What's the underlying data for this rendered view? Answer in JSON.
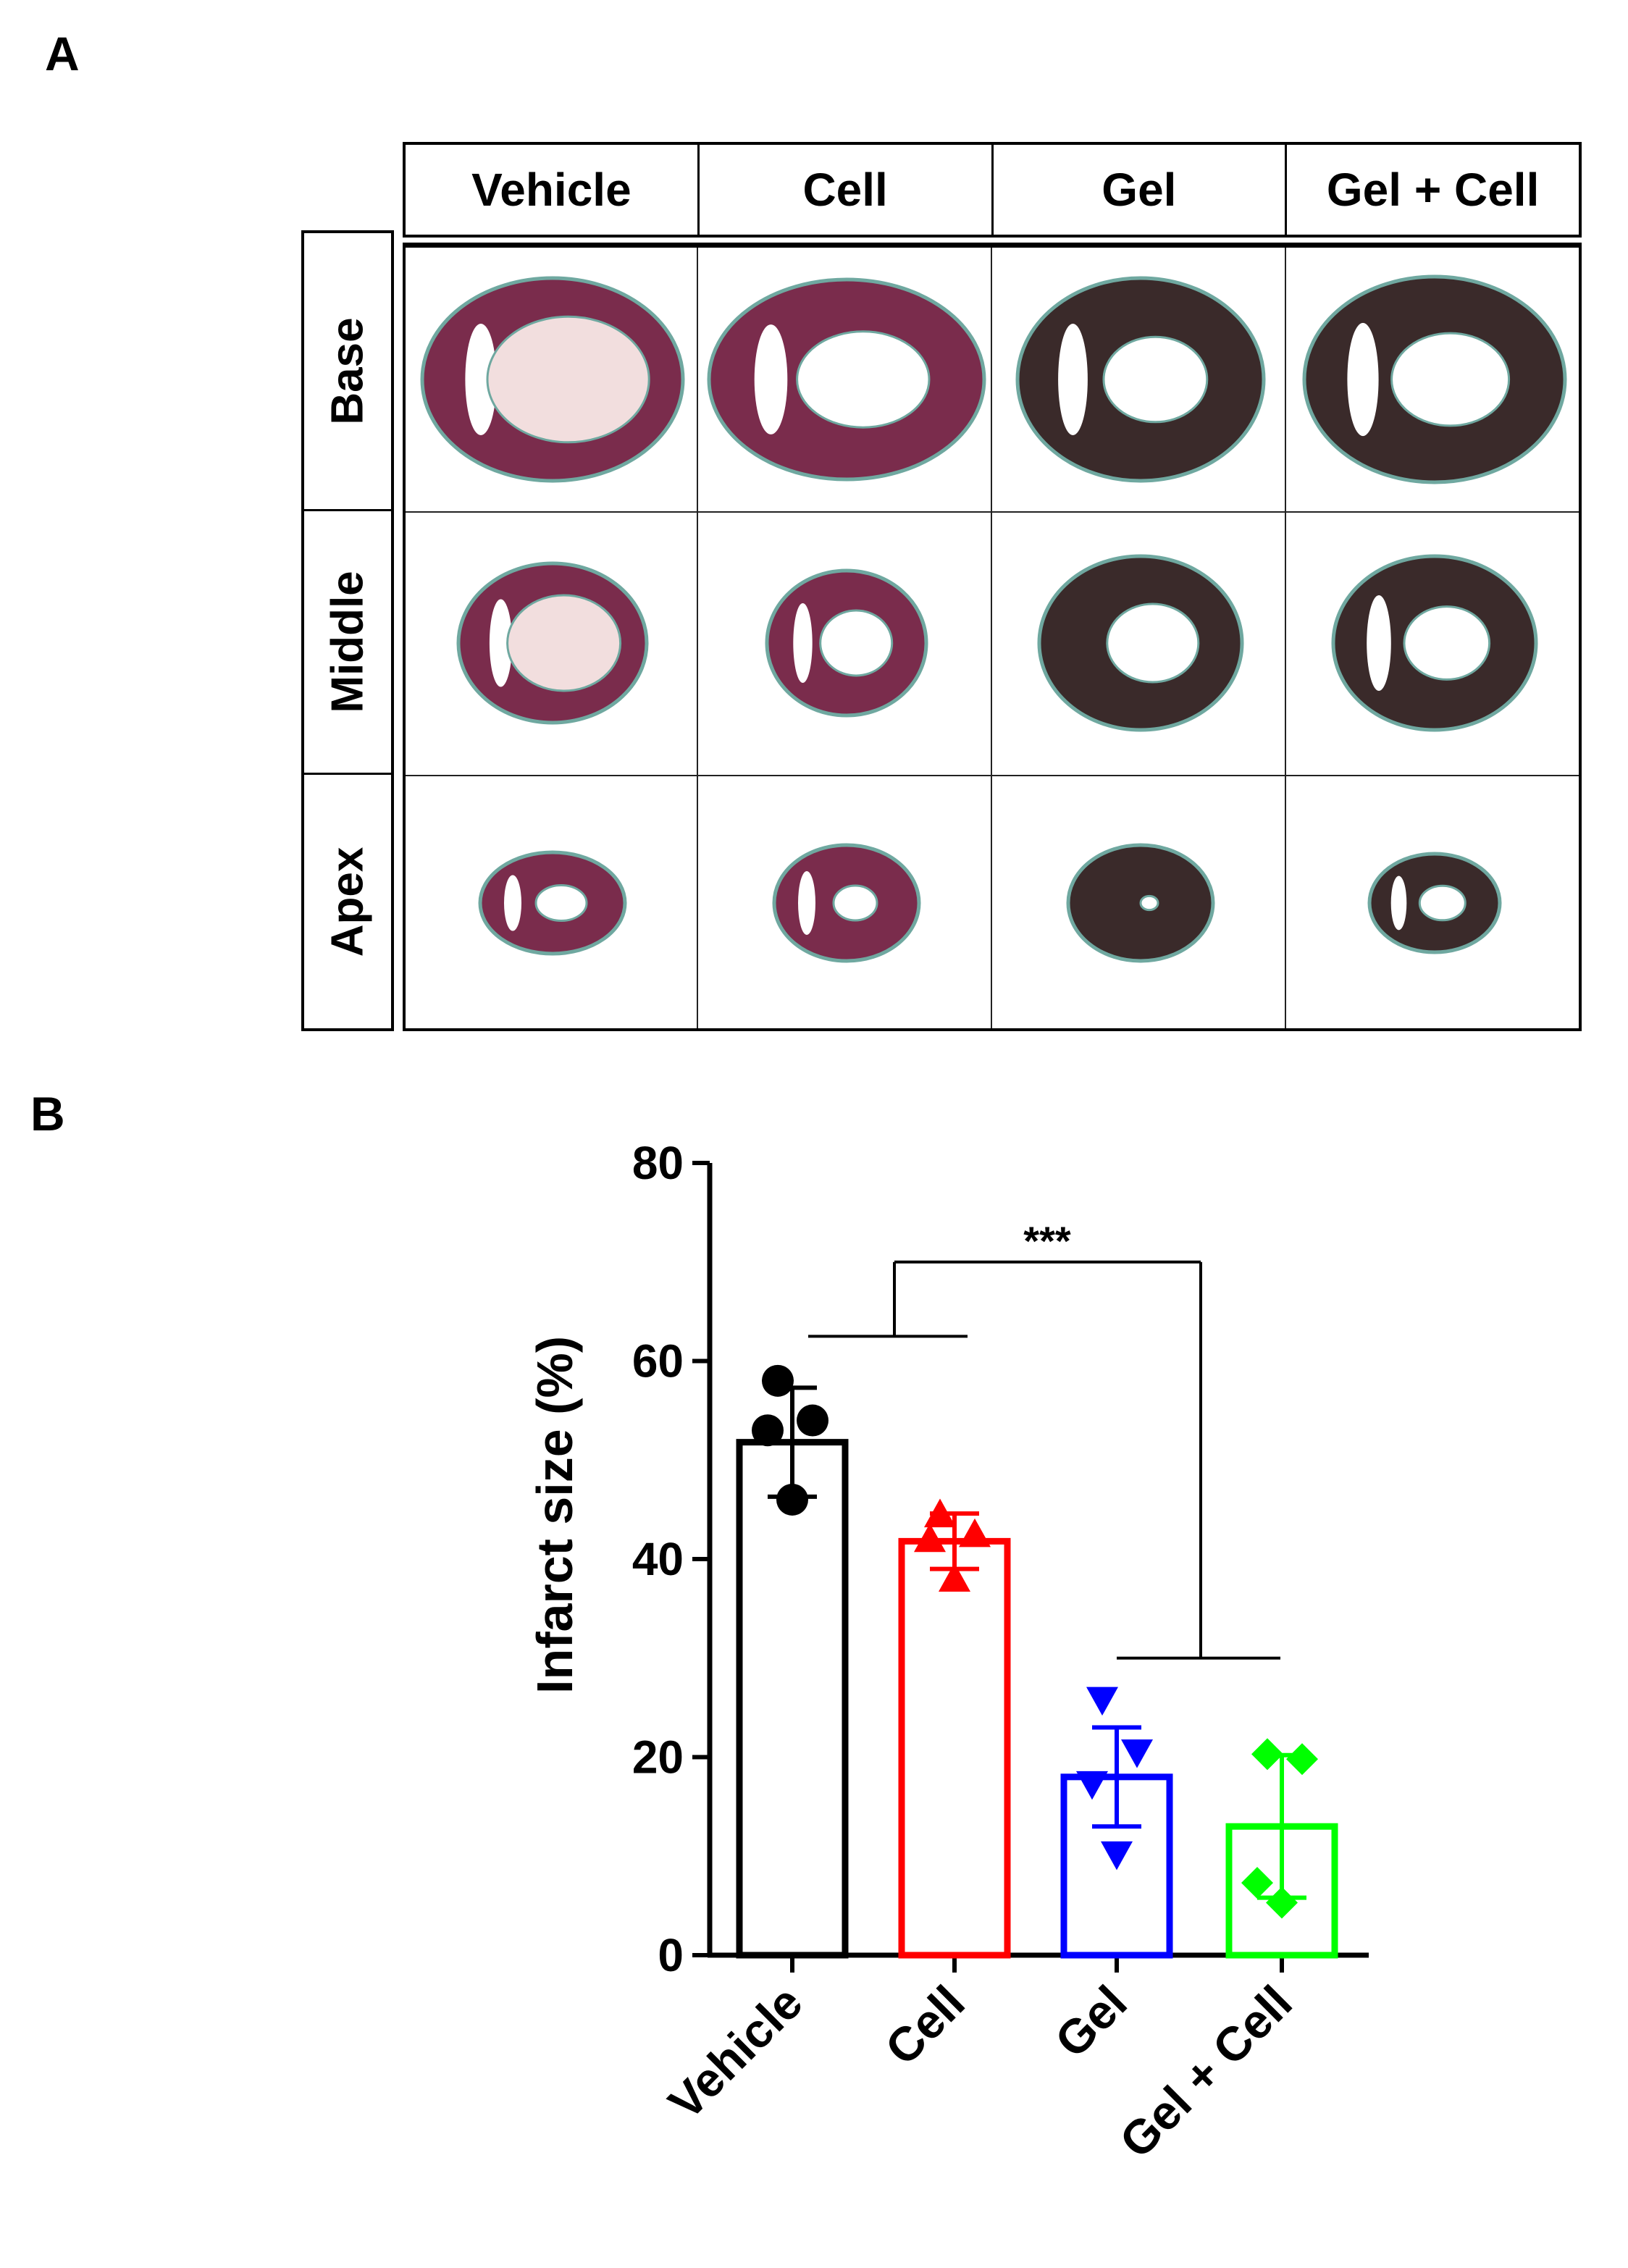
{
  "panels": {
    "a_label": "A",
    "b_label": "B"
  },
  "table": {
    "columns": [
      "Vehicle",
      "Cell",
      "Gel",
      "Gel + Cell"
    ],
    "rows": [
      "Base",
      "Middle",
      "Apex"
    ]
  },
  "colors": {
    "tissue_red": "#7a2c4c",
    "tissue_dark": "#3a2a2a",
    "scar_green": "#6fa8a0",
    "lumen": "#f2dede"
  },
  "chart_data": {
    "type": "bar",
    "ylabel": "Infarct size (%)",
    "ylim": [
      0,
      80
    ],
    "yticks": [
      "0",
      "20",
      "40",
      "60",
      "80"
    ],
    "categories": [
      "Vehicle",
      "Cell",
      "Gel",
      "Gel + Cell"
    ],
    "values": [
      51.8,
      41.8,
      18.0,
      13.0
    ],
    "errors": [
      5.5,
      2.8,
      5.0,
      7.2
    ],
    "colors": [
      "#000000",
      "#ff0000",
      "#0000ff",
      "#00ff00"
    ],
    "markers": [
      "circle",
      "triangle-up",
      "triangle-down",
      "diamond"
    ],
    "points": [
      [
        58,
        54,
        53,
        46
      ],
      [
        44.5,
        42.5,
        42,
        38
      ],
      [
        25.8,
        20.5,
        17.3,
        10.2
      ],
      [
        20.3,
        19.8,
        7.3,
        5.3
      ]
    ],
    "significance": "***",
    "grid": false
  }
}
